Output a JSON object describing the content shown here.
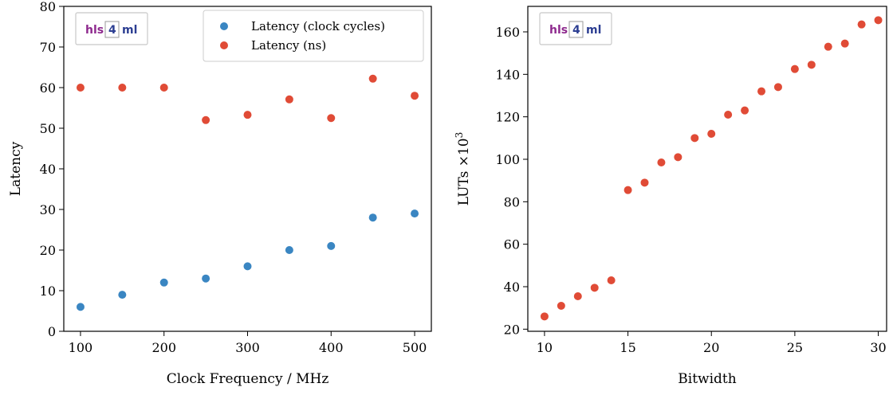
{
  "chart_data": [
    {
      "type": "scatter",
      "xlabel": "Clock Frequency / MHz",
      "ylabel": "Latency",
      "xlim": [
        80,
        520
      ],
      "ylim": [
        0,
        80
      ],
      "xticks": [
        100,
        200,
        300,
        400,
        500
      ],
      "yticks": [
        0,
        10,
        20,
        30,
        40,
        50,
        60,
        70,
        80
      ],
      "legend_position": "top-right",
      "series": [
        {
          "name": "Latency (clock cycles)",
          "color": "#3a86c2",
          "x": [
            100,
            150,
            200,
            250,
            300,
            350,
            400,
            450,
            500
          ],
          "y": [
            6,
            9,
            12,
            13,
            16,
            20,
            21,
            28,
            29
          ]
        },
        {
          "name": "Latency (ns)",
          "color": "#e04b36",
          "x": [
            100,
            150,
            200,
            250,
            300,
            350,
            400,
            450,
            500
          ],
          "y": [
            60,
            60,
            60,
            52,
            53.3,
            57.1,
            52.5,
            62.2,
            58
          ]
        }
      ]
    },
    {
      "type": "scatter",
      "xlabel": "Bitwidth",
      "ylabel": "LUTs ×10",
      "ylabel_exponent": "3",
      "xlim": [
        9,
        30.5
      ],
      "ylim": [
        19,
        172
      ],
      "xticks": [
        10,
        15,
        20,
        25,
        30
      ],
      "yticks": [
        20,
        40,
        60,
        80,
        100,
        120,
        140,
        160
      ],
      "series": [
        {
          "color": "#e04b36",
          "x": [
            10,
            11,
            12,
            13,
            14,
            15,
            16,
            17,
            18,
            19,
            20,
            21,
            22,
            23,
            24,
            25,
            26,
            27,
            28,
            29,
            30
          ],
          "y": [
            26,
            31,
            35.5,
            39.5,
            43,
            85.5,
            89,
            98.5,
            101,
            110,
            112,
            121,
            123,
            132,
            134,
            142.5,
            144.5,
            153,
            154.5,
            163.5,
            165.5
          ]
        }
      ]
    }
  ],
  "logo": {
    "parts": [
      "hls",
      "4",
      "ml"
    ],
    "colors": [
      "#8e2a8e",
      "#2c3e92",
      "#2c3e92"
    ]
  }
}
